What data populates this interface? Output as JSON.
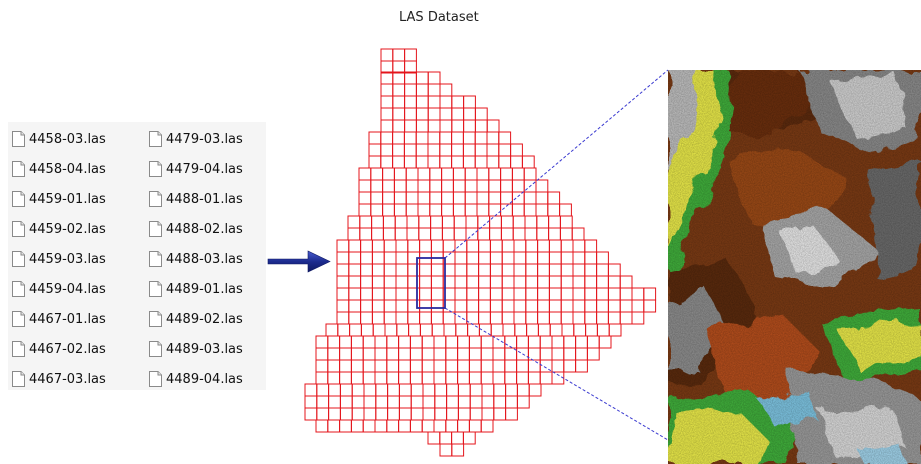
{
  "dataset_title": "LAS Dataset",
  "files_left": [
    "4458-03.las",
    "4458-04.las",
    "4459-01.las",
    "4459-02.las",
    "4459-03.las",
    "4459-04.las",
    "4467-01.las",
    "4467-02.las",
    "4467-03.las"
  ],
  "files_right": [
    "4479-03.las",
    "4479-04.las",
    "4488-01.las",
    "4488-02.las",
    "4488-03.las",
    "4489-01.las",
    "4489-02.las",
    "4489-03.las",
    "4489-04.las"
  ],
  "icons": {
    "file": "document-icon",
    "arrow": "right-arrow-icon"
  },
  "colors": {
    "grid": "#e4141b",
    "highlight": "#2a2a9e",
    "arrow": "#1c2b8f",
    "connector": "#3a3ad0"
  }
}
